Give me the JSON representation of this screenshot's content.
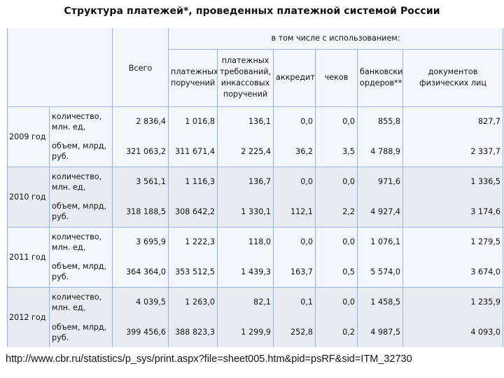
{
  "title": "Структура платежей*, проведенных платежной системой России",
  "header": {
    "group": "в том числе с использованием:",
    "total": "Всего",
    "cols": [
      "платежных поручений",
      "платежных требований, инкассовых поручений",
      "аккредитивов",
      "чеков",
      "банковских ордеров**",
      "документов физических лиц"
    ]
  },
  "rows": [
    {
      "year": "2009 год",
      "metric": "количество, млн. ед,",
      "total": "2 836,4",
      "v": [
        "1 016,8",
        "136,1",
        "0,0",
        "0,0",
        "855,8",
        "827,7"
      ]
    },
    {
      "year": "",
      "metric": "объем, млрд, руб.",
      "total": "321 063,2",
      "v": [
        "311 671,4",
        "2 225,4",
        "36,2",
        "3,5",
        "4 788,9",
        "2 337,7"
      ]
    },
    {
      "year": "2010 год",
      "metric": "количество, млн. ед,",
      "total": "3 561,1",
      "v": [
        "1 116,3",
        "136,7",
        "0,0",
        "0,0",
        "971,6",
        "1 336,5"
      ]
    },
    {
      "year": "",
      "metric": "объем, млрд, руб.",
      "total": "318 188,5",
      "v": [
        "308 642,2",
        "1 330,1",
        "112,1",
        "2,2",
        "4 927,4",
        "3 174,6"
      ]
    },
    {
      "year": "2011 год",
      "metric": "количество, млн. ед,",
      "total": "3 695,9",
      "v": [
        "1 222,3",
        "118,0",
        "0,0",
        "0,0",
        "1 076,1",
        "1 279,5"
      ]
    },
    {
      "year": "",
      "metric": "объем, млрд, руб.",
      "total": "364 364,0",
      "v": [
        "353 512,5",
        "1 439,3",
        "163,7",
        "0,5",
        "5 574,0",
        "3 674,0"
      ]
    },
    {
      "year": "2012 год",
      "metric": "количество, млн. ед,",
      "total": "4 039,5",
      "v": [
        "1 263,0",
        "82,1",
        "0,1",
        "0,0",
        "1 458,5",
        "1 235,9"
      ]
    },
    {
      "year": "",
      "metric": "объем, млрд, руб.",
      "total": "399 456,6",
      "v": [
        "388 823,3",
        "1 299,9",
        "252,8",
        "0,2",
        "4 987,5",
        "4 093,0"
      ]
    }
  ],
  "source_url": "http://www.cbr.ru/statistics/p_sys/print.aspx?file=sheet005.htm&pid=psRF&sid=ITM_32730"
}
